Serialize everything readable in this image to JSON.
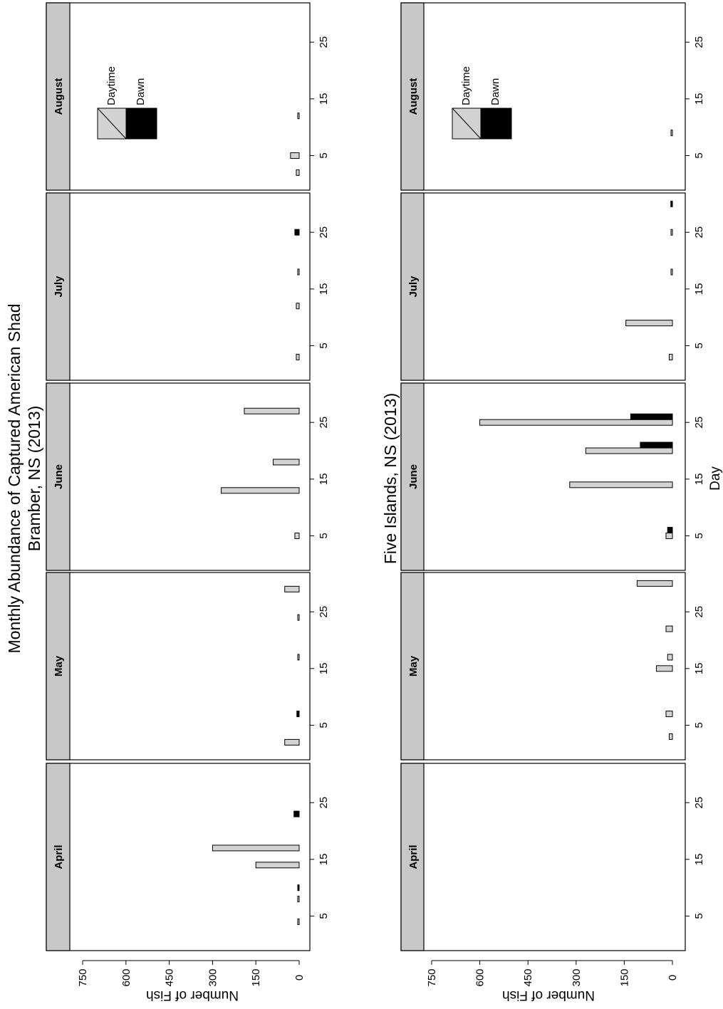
{
  "colors": {
    "daytime": "#d3d3d3",
    "dawn": "#000000",
    "strip": "#c8c8c8",
    "frame": "#000000"
  },
  "title": {
    "line1": "Monthly Abundance of Captured American Shad",
    "line2": "Bramber, NS (2013)"
  },
  "panel2_title": "Five Islands, NS (2013)",
  "x_axis_title": "Day",
  "y_axis_title": "Number of Fish",
  "legend": {
    "daytime": "Daytime",
    "dawn": "Dawn"
  },
  "chart_data": [
    {
      "type": "bar",
      "title": "Bramber, NS (2013)",
      "xlabel": "Day",
      "ylabel": "Number of Fish",
      "ylim": [
        0,
        800
      ],
      "yticks": [
        0,
        150,
        300,
        450,
        600,
        750
      ],
      "xticks": [
        5,
        15,
        25
      ],
      "months": [
        {
          "name": "April",
          "daytime": [
            [
              4,
              2
            ],
            [
              8,
              2
            ],
            [
              14,
              150
            ],
            [
              17,
              300
            ]
          ],
          "dawn": [
            [
              10,
              3
            ],
            [
              23,
              18
            ]
          ]
        },
        {
          "name": "May",
          "daytime": [
            [
              2,
              50
            ],
            [
              17,
              2
            ],
            [
              24,
              2
            ],
            [
              29,
              50
            ]
          ],
          "dawn": [
            [
              7,
              8
            ]
          ]
        },
        {
          "name": "June",
          "daytime": [
            [
              5,
              15
            ],
            [
              13,
              270
            ],
            [
              18,
              90
            ],
            [
              27,
              190
            ]
          ],
          "dawn": []
        },
        {
          "name": "July",
          "daytime": [
            [
              3,
              10
            ],
            [
              12,
              10
            ],
            [
              18,
              2
            ]
          ],
          "dawn": [
            [
              25,
              15
            ]
          ]
        },
        {
          "name": "August",
          "daytime": [
            [
              2,
              10
            ],
            [
              5,
              30
            ],
            [
              12,
              5
            ]
          ],
          "dawn": []
        }
      ]
    },
    {
      "type": "bar",
      "title": "Five Islands, NS (2013)",
      "xlabel": "Day",
      "ylabel": "Number of Fish",
      "ylim": [
        0,
        800
      ],
      "yticks": [
        0,
        150,
        300,
        450,
        600,
        750
      ],
      "xticks": [
        5,
        15,
        25
      ],
      "months": [
        {
          "name": "April",
          "daytime": [],
          "dawn": []
        },
        {
          "name": "May",
          "daytime": [
            [
              3,
              10
            ],
            [
              7,
              20
            ],
            [
              15,
              50
            ],
            [
              17,
              15
            ],
            [
              22,
              20
            ],
            [
              30,
              110
            ]
          ],
          "dawn": []
        },
        {
          "name": "June",
          "daytime": [
            [
              5,
              20
            ],
            [
              14,
              320
            ],
            [
              20,
              270
            ],
            [
              25,
              600
            ]
          ],
          "dawn": [
            [
              6,
              15
            ],
            [
              21,
              100
            ],
            [
              26,
              130
            ]
          ]
        },
        {
          "name": "July",
          "daytime": [
            [
              3,
              10
            ],
            [
              9,
              145
            ],
            [
              18,
              2
            ],
            [
              25,
              2
            ]
          ],
          "dawn": [
            [
              30,
              5
            ]
          ]
        },
        {
          "name": "August",
          "daytime": [
            [
              9,
              2
            ]
          ],
          "dawn": []
        }
      ]
    }
  ]
}
